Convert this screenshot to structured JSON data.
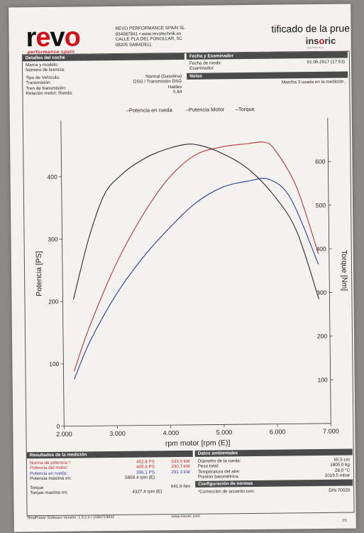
{
  "header": {
    "logo_text": "revo",
    "logo_tagline": "performance spain",
    "company_name": "REVO PERFORMANCE SPAIN SL",
    "company_phone_web": "934087841 • www.revotechnik.es",
    "company_street": "CALLE PLA DEL FONOLLAR, 5C",
    "company_city": "08205 SABADELL",
    "certificate_title": "tificado de la prue",
    "brand": "insoric",
    "brand_tagline": "Real Power Dyno"
  },
  "car_details": {
    "section_title": "Detalles del coche",
    "rows": [
      {
        "label": "Marca y modelo:",
        "value": ""
      },
      {
        "label": "Número de licencia:",
        "value": ""
      },
      {
        "label": "Tipo de Vehículo:",
        "value": "Normal (Gasolina)"
      },
      {
        "label": "Transmisión:",
        "value": "DSG / Transmisión DSG"
      },
      {
        "label": "Tren de transmisión:",
        "value": "Haldex"
      },
      {
        "label": "Relación motor: Rueda:",
        "value": "5.84"
      }
    ]
  },
  "date_section": {
    "section_title": "Fecha y Examinador",
    "rows": [
      {
        "label": "Fecha de medir:",
        "value": "01.06.2017 (17:53)"
      },
      {
        "label": "Examinador:",
        "value": ""
      }
    ]
  },
  "notes": {
    "section_title": "Notas",
    "text": "Marcha 3 usada en la medición."
  },
  "chart_data": {
    "type": "line",
    "legend": [
      "Potencia en rueda",
      "Potencia Motor",
      "Torque"
    ],
    "legend_position": "top-center",
    "xlabel": "rpm motor [rpm (E)]",
    "ylabel_left": "Potencia [PS]",
    "ylabel_right": "Torque [Nm]",
    "x_ticks": [
      "2.000",
      "3.000",
      "4.000",
      "5.000",
      "6.000",
      "7.000"
    ],
    "y_left_ticks": [
      "0",
      "100",
      "200",
      "300",
      "400"
    ],
    "y_right_ticks": [
      "100",
      "200",
      "300",
      "400",
      "500",
      "600"
    ],
    "xlim": [
      2000,
      7000
    ],
    "ylim_left": [
      0,
      490
    ],
    "ylim_right": [
      0,
      700
    ],
    "grid": false,
    "colors": {
      "wheel": "#2b3b9b",
      "engine": "#b5343a",
      "torque": "#2a2a2a"
    },
    "series": [
      {
        "name": "Potencia en rueda",
        "axis": "left",
        "color": "#2b3b9b",
        "x": [
          2200,
          2500,
          3000,
          3500,
          4000,
          4500,
          5000,
          5500,
          5900,
          6300,
          6800
        ],
        "y": [
          75,
          135,
          210,
          268,
          315,
          355,
          380,
          390,
          392,
          360,
          255
        ]
      },
      {
        "name": "Potencia Motor",
        "axis": "left",
        "color": "#b5343a",
        "x": [
          2200,
          2500,
          3000,
          3500,
          4000,
          4500,
          5000,
          5500,
          5800,
          6000,
          6400,
          6800
        ],
        "y": [
          88,
          160,
          258,
          335,
          395,
          432,
          445,
          450,
          452,
          440,
          380,
          272
        ]
      },
      {
        "name": "Torque",
        "axis": "right",
        "color": "#2a2a2a",
        "x": [
          2200,
          2500,
          2800,
          3100,
          3400,
          3800,
          4300,
          4600,
          5000,
          5500,
          6000,
          6400,
          6800
        ],
        "y": [
          290,
          430,
          530,
          572,
          600,
          625,
          642,
          640,
          622,
          585,
          520,
          440,
          285
        ]
      }
    ]
  },
  "results": {
    "section_title": "Resultados de la medición",
    "rows": [
      {
        "label": "Norma de potencia ¹:",
        "ps": "452.8 PS",
        "kw": "333.0 kW",
        "color": "red"
      },
      {
        "label": "Potencia del motor:",
        "ps": "449.6 PS",
        "kw": "330.7 kW",
        "color": "red"
      },
      {
        "label": "Potencia en rueda:",
        "ps": "396.1 PS",
        "kw": "291.3 kW",
        "color": "blue"
      },
      {
        "label": "Potencia máxima en:",
        "ps": "5859.4 rpm (E)",
        "kw": "",
        "color": "dark"
      }
    ],
    "torque_label": "Torque",
    "torque_value": "641.6 Nm",
    "torque_max_label": "Torque maximo en:",
    "torque_max_value": "4327.4 rpm (E)"
  },
  "ambient": {
    "section_title": "Datos ambientales",
    "rows": [
      {
        "label": "Diámetro de la rueda:",
        "value": "65.5 cm"
      },
      {
        "label": "Peso total:",
        "value": "1805.0 kg"
      },
      {
        "label": "Temperatura del aire:",
        "value": "28.0 °C"
      },
      {
        "label": "Presión barométrica:",
        "value": "1019.5 mbar"
      }
    ]
  },
  "norms": {
    "section_title": "Configuración de normas",
    "label": "¹Corrección de acuerdo con:",
    "value": "DIN 70020"
  },
  "footer": {
    "software": "RealPower Software Versión: 1.5.2.0 / 1080719932",
    "website": "www.insoric.com",
    "page": "1/1"
  }
}
